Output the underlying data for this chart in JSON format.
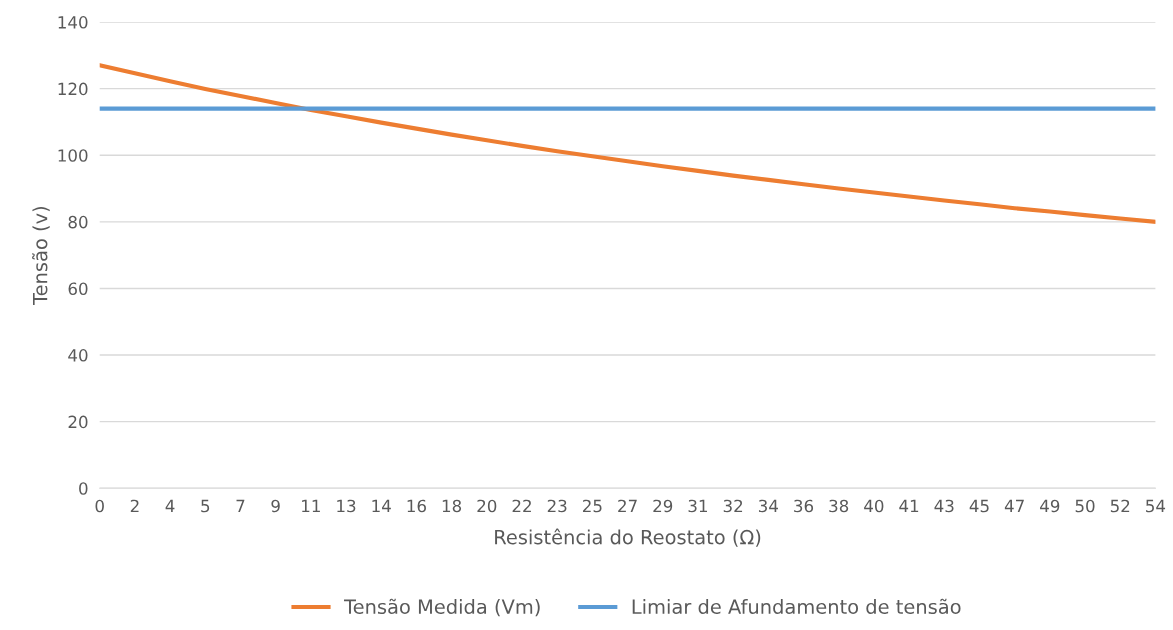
{
  "chart_data": {
    "type": "line",
    "xlabel": "Resistência do Reostato (Ω)",
    "ylabel": "Tensão (v)",
    "categories": [
      "0",
      "2",
      "4",
      "5",
      "7",
      "9",
      "11",
      "13",
      "14",
      "16",
      "18",
      "20",
      "22",
      "23",
      "25",
      "27",
      "29",
      "31",
      "32",
      "34",
      "36",
      "38",
      "40",
      "41",
      "43",
      "45",
      "47",
      "49",
      "50",
      "52",
      "54"
    ],
    "series": [
      {
        "name": "Tensão Medida (Vm)",
        "color": "#ed7d31",
        "values": [
          127,
          124.6,
          122.2,
          119.9,
          117.8,
          115.7,
          113.6,
          111.7,
          109.8,
          108,
          106.2,
          104.5,
          102.8,
          101.2,
          99.7,
          98.2,
          96.7,
          95.3,
          93.9,
          92.6,
          91.3,
          90,
          88.8,
          87.6,
          86.4,
          85.3,
          84.1,
          83.1,
          82,
          81,
          80
        ]
      },
      {
        "name": "Limiar de Afundamento de tensão",
        "color": "#5b9bd5",
        "values": [
          114,
          114,
          114,
          114,
          114,
          114,
          114,
          114,
          114,
          114,
          114,
          114,
          114,
          114,
          114,
          114,
          114,
          114,
          114,
          114,
          114,
          114,
          114,
          114,
          114,
          114,
          114,
          114,
          114,
          114,
          114
        ]
      }
    ],
    "ylim": [
      0,
      140
    ],
    "yticks": [
      0,
      20,
      40,
      60,
      80,
      100,
      120,
      140
    ],
    "grid": "y",
    "legend": "bottom",
    "marker": "none",
    "line_style": "solid"
  }
}
